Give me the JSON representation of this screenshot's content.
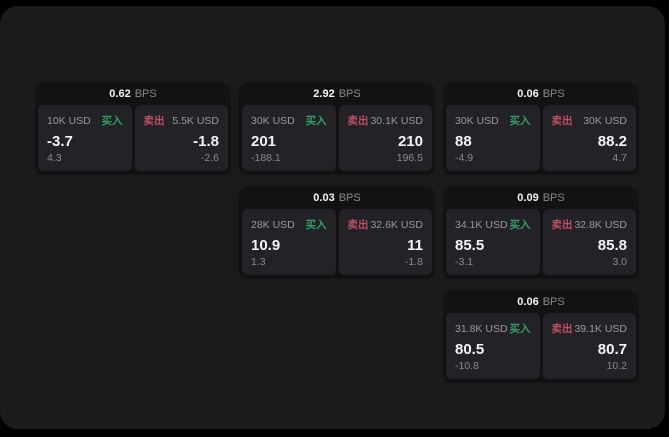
{
  "colors": {
    "outer_bg": "#000000",
    "page_bg": "#1b1b1d",
    "card_bg": "#121214",
    "panel_bg": "#232327",
    "text_primary": "#f5f5f7",
    "text_muted": "#8a8a8f",
    "buy_green": "#30a05f",
    "sell_red": "#c04d62"
  },
  "labels": {
    "bps_unit": "BPS",
    "buy": "买入",
    "sell": "卖出"
  },
  "cards": [
    {
      "bps": "0.62",
      "col": 1,
      "row": 1,
      "buy": {
        "amount": "10K USD",
        "value": "-3.7",
        "delta": "4.3"
      },
      "sell": {
        "amount": "5.5K USD",
        "value": "-1.8",
        "delta": "-2.6"
      }
    },
    {
      "bps": "2.92",
      "col": 2,
      "row": 1,
      "buy": {
        "amount": "30K USD",
        "value": "201",
        "delta": "-188.1"
      },
      "sell": {
        "amount": "30.1K USD",
        "value": "210",
        "delta": "196.5"
      }
    },
    {
      "bps": "0.06",
      "col": 3,
      "row": 1,
      "buy": {
        "amount": "30K USD",
        "value": "88",
        "delta": "-4.9"
      },
      "sell": {
        "amount": "30K USD",
        "value": "88.2",
        "delta": "4.7"
      }
    },
    {
      "bps": "0.03",
      "col": 2,
      "row": 2,
      "buy": {
        "amount": "28K USD",
        "value": "10.9",
        "delta": "1.3"
      },
      "sell": {
        "amount": "32.6K USD",
        "value": "11",
        "delta": "-1.8"
      }
    },
    {
      "bps": "0.09",
      "col": 3,
      "row": 2,
      "buy": {
        "amount": "34.1K USD",
        "value": "85.5",
        "delta": "-3.1"
      },
      "sell": {
        "amount": "32.8K USD",
        "value": "85.8",
        "delta": "3.0"
      }
    },
    {
      "bps": "0.06",
      "col": 3,
      "row": 3,
      "buy": {
        "amount": "31.8K USD",
        "value": "80.5",
        "delta": "-10.8"
      },
      "sell": {
        "amount": "39.1K USD",
        "value": "80.7",
        "delta": "10.2"
      }
    }
  ]
}
